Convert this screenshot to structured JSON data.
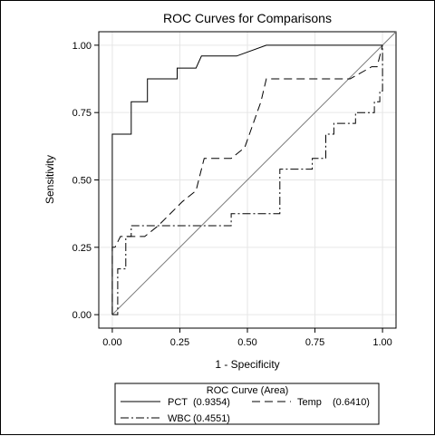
{
  "chart_data": {
    "type": "line",
    "title": "ROC Curves for Comparisons",
    "xlabel": "1 - Specificity",
    "ylabel": "Sensitivity",
    "xlim": [
      -0.05,
      1.05
    ],
    "ylim": [
      -0.05,
      1.05
    ],
    "xticks": [
      {
        "value": 0.0,
        "label": "0.00"
      },
      {
        "value": 0.25,
        "label": "0.25"
      },
      {
        "value": 0.5,
        "label": "0.50"
      },
      {
        "value": 0.75,
        "label": "0.75"
      },
      {
        "value": 1.0,
        "label": "1.00"
      }
    ],
    "yticks": [
      {
        "value": 0.0,
        "label": "0.00"
      },
      {
        "value": 0.25,
        "label": "0.25"
      },
      {
        "value": 0.5,
        "label": "0.50"
      },
      {
        "value": 0.75,
        "label": "0.75"
      },
      {
        "value": 1.0,
        "label": "1.00"
      }
    ],
    "grid": true,
    "reference_line": "diagonal",
    "legend": {
      "title": "ROC Curve (Area)",
      "position": "bottom"
    },
    "series": [
      {
        "name": "PCT",
        "area": "(0.9354)",
        "style": "solid",
        "x": [
          0,
          0,
          0,
          0.02,
          0.07,
          0.07,
          0.13,
          0.13,
          0.24,
          0.24,
          0.31,
          0.33,
          0.46,
          0.57,
          0.99,
          1.0
        ],
        "y": [
          0,
          0.04,
          0.67,
          0.67,
          0.67,
          0.79,
          0.79,
          0.875,
          0.875,
          0.915,
          0.915,
          0.96,
          0.96,
          1.0,
          1.0,
          1.0
        ]
      },
      {
        "name": "Temp",
        "area": "(0.6410)",
        "style": "dash",
        "x": [
          0,
          0,
          0.01,
          0.03,
          0.03,
          0.12,
          0.17,
          0.26,
          0.31,
          0.34,
          0.44,
          0.49,
          0.55,
          0.57,
          0.59,
          0.88,
          0.96,
          0.98,
          0.99,
          1.0
        ],
        "y": [
          0,
          0.25,
          0.25,
          0.29,
          0.29,
          0.29,
          0.33,
          0.42,
          0.46,
          0.58,
          0.58,
          0.62,
          0.79,
          0.875,
          0.875,
          0.875,
          0.92,
          0.92,
          0.96,
          1.0
        ]
      },
      {
        "name": "WBC",
        "area": "(0.4551)",
        "style": "dashdot",
        "x": [
          0,
          0.02,
          0.02,
          0.05,
          0.05,
          0.07,
          0.07,
          0.44,
          0.44,
          0.62,
          0.62,
          0.74,
          0.74,
          0.79,
          0.79,
          0.82,
          0.82,
          0.9,
          0.9,
          0.97,
          0.97,
          0.99,
          0.99,
          1.0,
          1.0
        ],
        "y": [
          0,
          0,
          0.17,
          0.17,
          0.29,
          0.29,
          0.33,
          0.33,
          0.375,
          0.375,
          0.54,
          0.54,
          0.58,
          0.58,
          0.67,
          0.67,
          0.71,
          0.71,
          0.75,
          0.75,
          0.79,
          0.79,
          0.83,
          0.83,
          1.0
        ]
      }
    ]
  }
}
